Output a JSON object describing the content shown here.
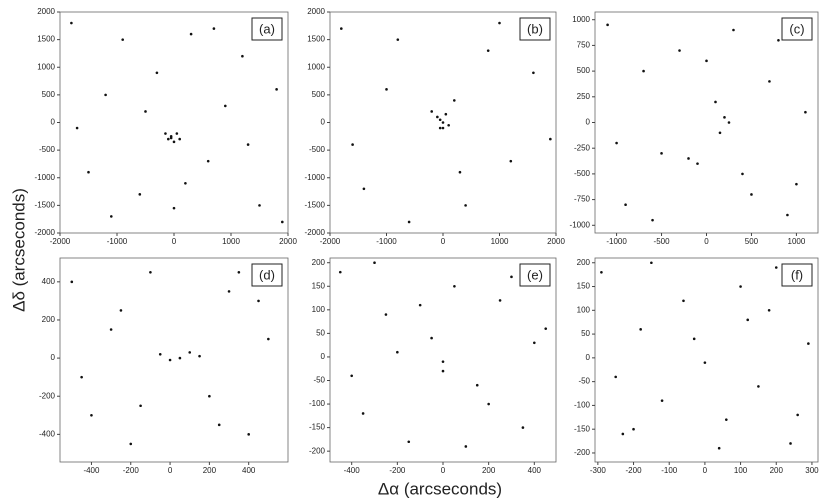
{
  "figure": {
    "xlabel": "Δα (arcseconds)",
    "ylabel": "Δδ (arcseconds)"
  },
  "chart_data": [
    {
      "type": "scatter",
      "label": "(a)",
      "color": "#111111",
      "xlim": [
        -2000,
        2000
      ],
      "ylim": [
        -2000,
        2000
      ],
      "xticks": [
        -2000,
        -1000,
        0,
        1000,
        2000
      ],
      "yticks": [
        -2000,
        -1500,
        -1000,
        -500,
        0,
        500,
        1000,
        1500,
        2000
      ],
      "x": [
        -1800,
        -1500,
        -1200,
        -900,
        -600,
        -300,
        -150,
        -100,
        -50,
        0,
        50,
        100,
        300,
        600,
        900,
        1200,
        1500,
        1800,
        -1700,
        -1100,
        -500,
        200,
        700,
        1300,
        1900,
        0,
        -50
      ],
      "y": [
        1800,
        -900,
        500,
        1500,
        -1300,
        900,
        -200,
        -300,
        -250,
        -350,
        -200,
        -300,
        1600,
        -700,
        300,
        1200,
        -1500,
        600,
        -100,
        -1700,
        200,
        -1100,
        1700,
        -400,
        -1800,
        -1550,
        -280
      ]
    },
    {
      "type": "scatter",
      "label": "(b)",
      "color": "#111111",
      "xlim": [
        -2000,
        2000
      ],
      "ylim": [
        -2000,
        2000
      ],
      "xticks": [
        -2000,
        -1000,
        0,
        1000,
        2000
      ],
      "yticks": [
        -2000,
        -1500,
        -1000,
        -500,
        0,
        500,
        1000,
        1500,
        2000
      ],
      "x": [
        -1800,
        -1400,
        -1000,
        -600,
        -200,
        -100,
        -50,
        0,
        50,
        100,
        200,
        400,
        800,
        1200,
        1600,
        1900,
        -1600,
        -800,
        300,
        1000,
        -50,
        0
      ],
      "y": [
        1700,
        -1200,
        600,
        -1800,
        200,
        100,
        -100,
        0,
        150,
        -50,
        400,
        -1500,
        1300,
        -700,
        900,
        -300,
        -400,
        1500,
        -900,
        1800,
        50,
        -100
      ]
    },
    {
      "type": "scatter",
      "label": "(c)",
      "color": "#111111",
      "xlim": [
        -1240,
        1240
      ],
      "ylim": [
        -1075,
        1075
      ],
      "xticks": [
        -1000,
        -500,
        0,
        500,
        1000
      ],
      "yticks": [
        -1000,
        -750,
        -500,
        -250,
        0,
        250,
        500,
        750,
        1000
      ],
      "x": [
        -1100,
        -900,
        -700,
        -500,
        -300,
        -200,
        -100,
        100,
        150,
        200,
        250,
        300,
        500,
        700,
        900,
        1100,
        -1000,
        -600,
        0,
        400,
        800,
        1000
      ],
      "y": [
        950,
        -800,
        500,
        -300,
        700,
        -350,
        -400,
        200,
        -100,
        50,
        0,
        900,
        -700,
        400,
        -900,
        100,
        -200,
        -950,
        600,
        -500,
        800,
        -600
      ]
    },
    {
      "type": "scatter",
      "label": "(d)",
      "color": "#111111",
      "xlim": [
        -560,
        600
      ],
      "ylim": [
        -545,
        525
      ],
      "xticks": [
        -400,
        -200,
        0,
        200,
        400
      ],
      "yticks": [
        -400,
        -200,
        0,
        200,
        400
      ],
      "x": [
        -500,
        -400,
        -300,
        -200,
        -100,
        -50,
        0,
        50,
        100,
        150,
        200,
        300,
        400,
        500,
        -450,
        -250,
        250,
        450,
        -150,
        350
      ],
      "y": [
        400,
        -300,
        150,
        -450,
        450,
        20,
        -10,
        0,
        30,
        10,
        -200,
        350,
        -400,
        100,
        -100,
        250,
        -350,
        300,
        -250,
        450
      ]
    },
    {
      "type": "scatter",
      "label": "(e)",
      "color": "#111111",
      "xlim": [
        -495,
        495
      ],
      "ylim": [
        -223,
        210
      ],
      "xticks": [
        -400,
        -200,
        0,
        200,
        400
      ],
      "yticks": [
        -200,
        -150,
        -100,
        -50,
        0,
        50,
        100,
        150,
        200
      ],
      "x": [
        -450,
        -350,
        -250,
        -150,
        -50,
        0,
        50,
        150,
        250,
        350,
        450,
        -400,
        -200,
        100,
        300,
        -300,
        200,
        400,
        -100,
        0
      ],
      "y": [
        180,
        -120,
        90,
        -180,
        40,
        -10,
        150,
        -60,
        120,
        -150,
        60,
        -40,
        10,
        -190,
        170,
        200,
        -100,
        30,
        110,
        -30
      ]
    },
    {
      "type": "scatter",
      "label": "(f)",
      "color": "#111111",
      "xlim": [
        -308,
        317
      ],
      "ylim": [
        -219,
        210
      ],
      "xticks": [
        -300,
        -200,
        -100,
        0,
        100,
        200,
        300
      ],
      "yticks": [
        -200,
        -150,
        -100,
        -50,
        0,
        50,
        100,
        150,
        200
      ],
      "x": [
        -290,
        -230,
        -180,
        -120,
        -60,
        0,
        40,
        100,
        150,
        200,
        260,
        290,
        -250,
        -150,
        -30,
        60,
        180,
        240,
        -200,
        120
      ],
      "y": [
        180,
        -160,
        60,
        -90,
        120,
        -10,
        -190,
        150,
        -60,
        190,
        -120,
        30,
        -40,
        200,
        40,
        -130,
        100,
        -180,
        -150,
        80
      ]
    }
  ]
}
